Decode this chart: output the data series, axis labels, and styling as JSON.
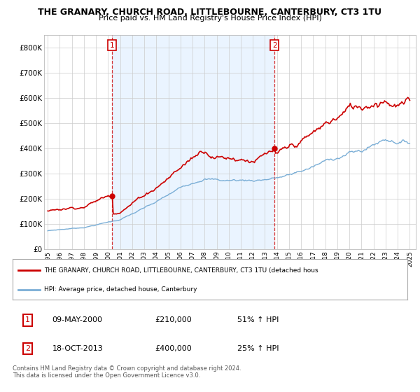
{
  "title": "THE GRANARY, CHURCH ROAD, LITTLEBOURNE, CANTERBURY, CT3 1TU",
  "subtitle": "Price paid vs. HM Land Registry's House Price Index (HPI)",
  "ylim": [
    0,
    850000
  ],
  "yticks": [
    0,
    100000,
    200000,
    300000,
    400000,
    500000,
    600000,
    700000,
    800000
  ],
  "ytick_labels": [
    "£0",
    "£100K",
    "£200K",
    "£300K",
    "£400K",
    "£500K",
    "£600K",
    "£700K",
    "£800K"
  ],
  "sale1_x": 2000.35,
  "sale1_y": 210000,
  "sale2_x": 2013.79,
  "sale2_y": 400000,
  "red_color": "#cc0000",
  "blue_color": "#7aaed6",
  "shade_color": "#ddeeff",
  "vline_color": "#cc0000",
  "legend_line1": "THE GRANARY, CHURCH ROAD, LITTLEBOURNE, CANTERBURY, CT3 1TU (detached hous",
  "legend_line2": "HPI: Average price, detached house, Canterbury",
  "annotation1_date": "09-MAY-2000",
  "annotation1_price": "£210,000",
  "annotation1_hpi": "51% ↑ HPI",
  "annotation2_date": "18-OCT-2013",
  "annotation2_price": "£400,000",
  "annotation2_hpi": "25% ↑ HPI",
  "footer": "Contains HM Land Registry data © Crown copyright and database right 2024.\nThis data is licensed under the Open Government Licence v3.0.",
  "background_color": "#ffffff",
  "grid_color": "#cccccc",
  "xlim_left": 1994.7,
  "xlim_right": 2025.5
}
